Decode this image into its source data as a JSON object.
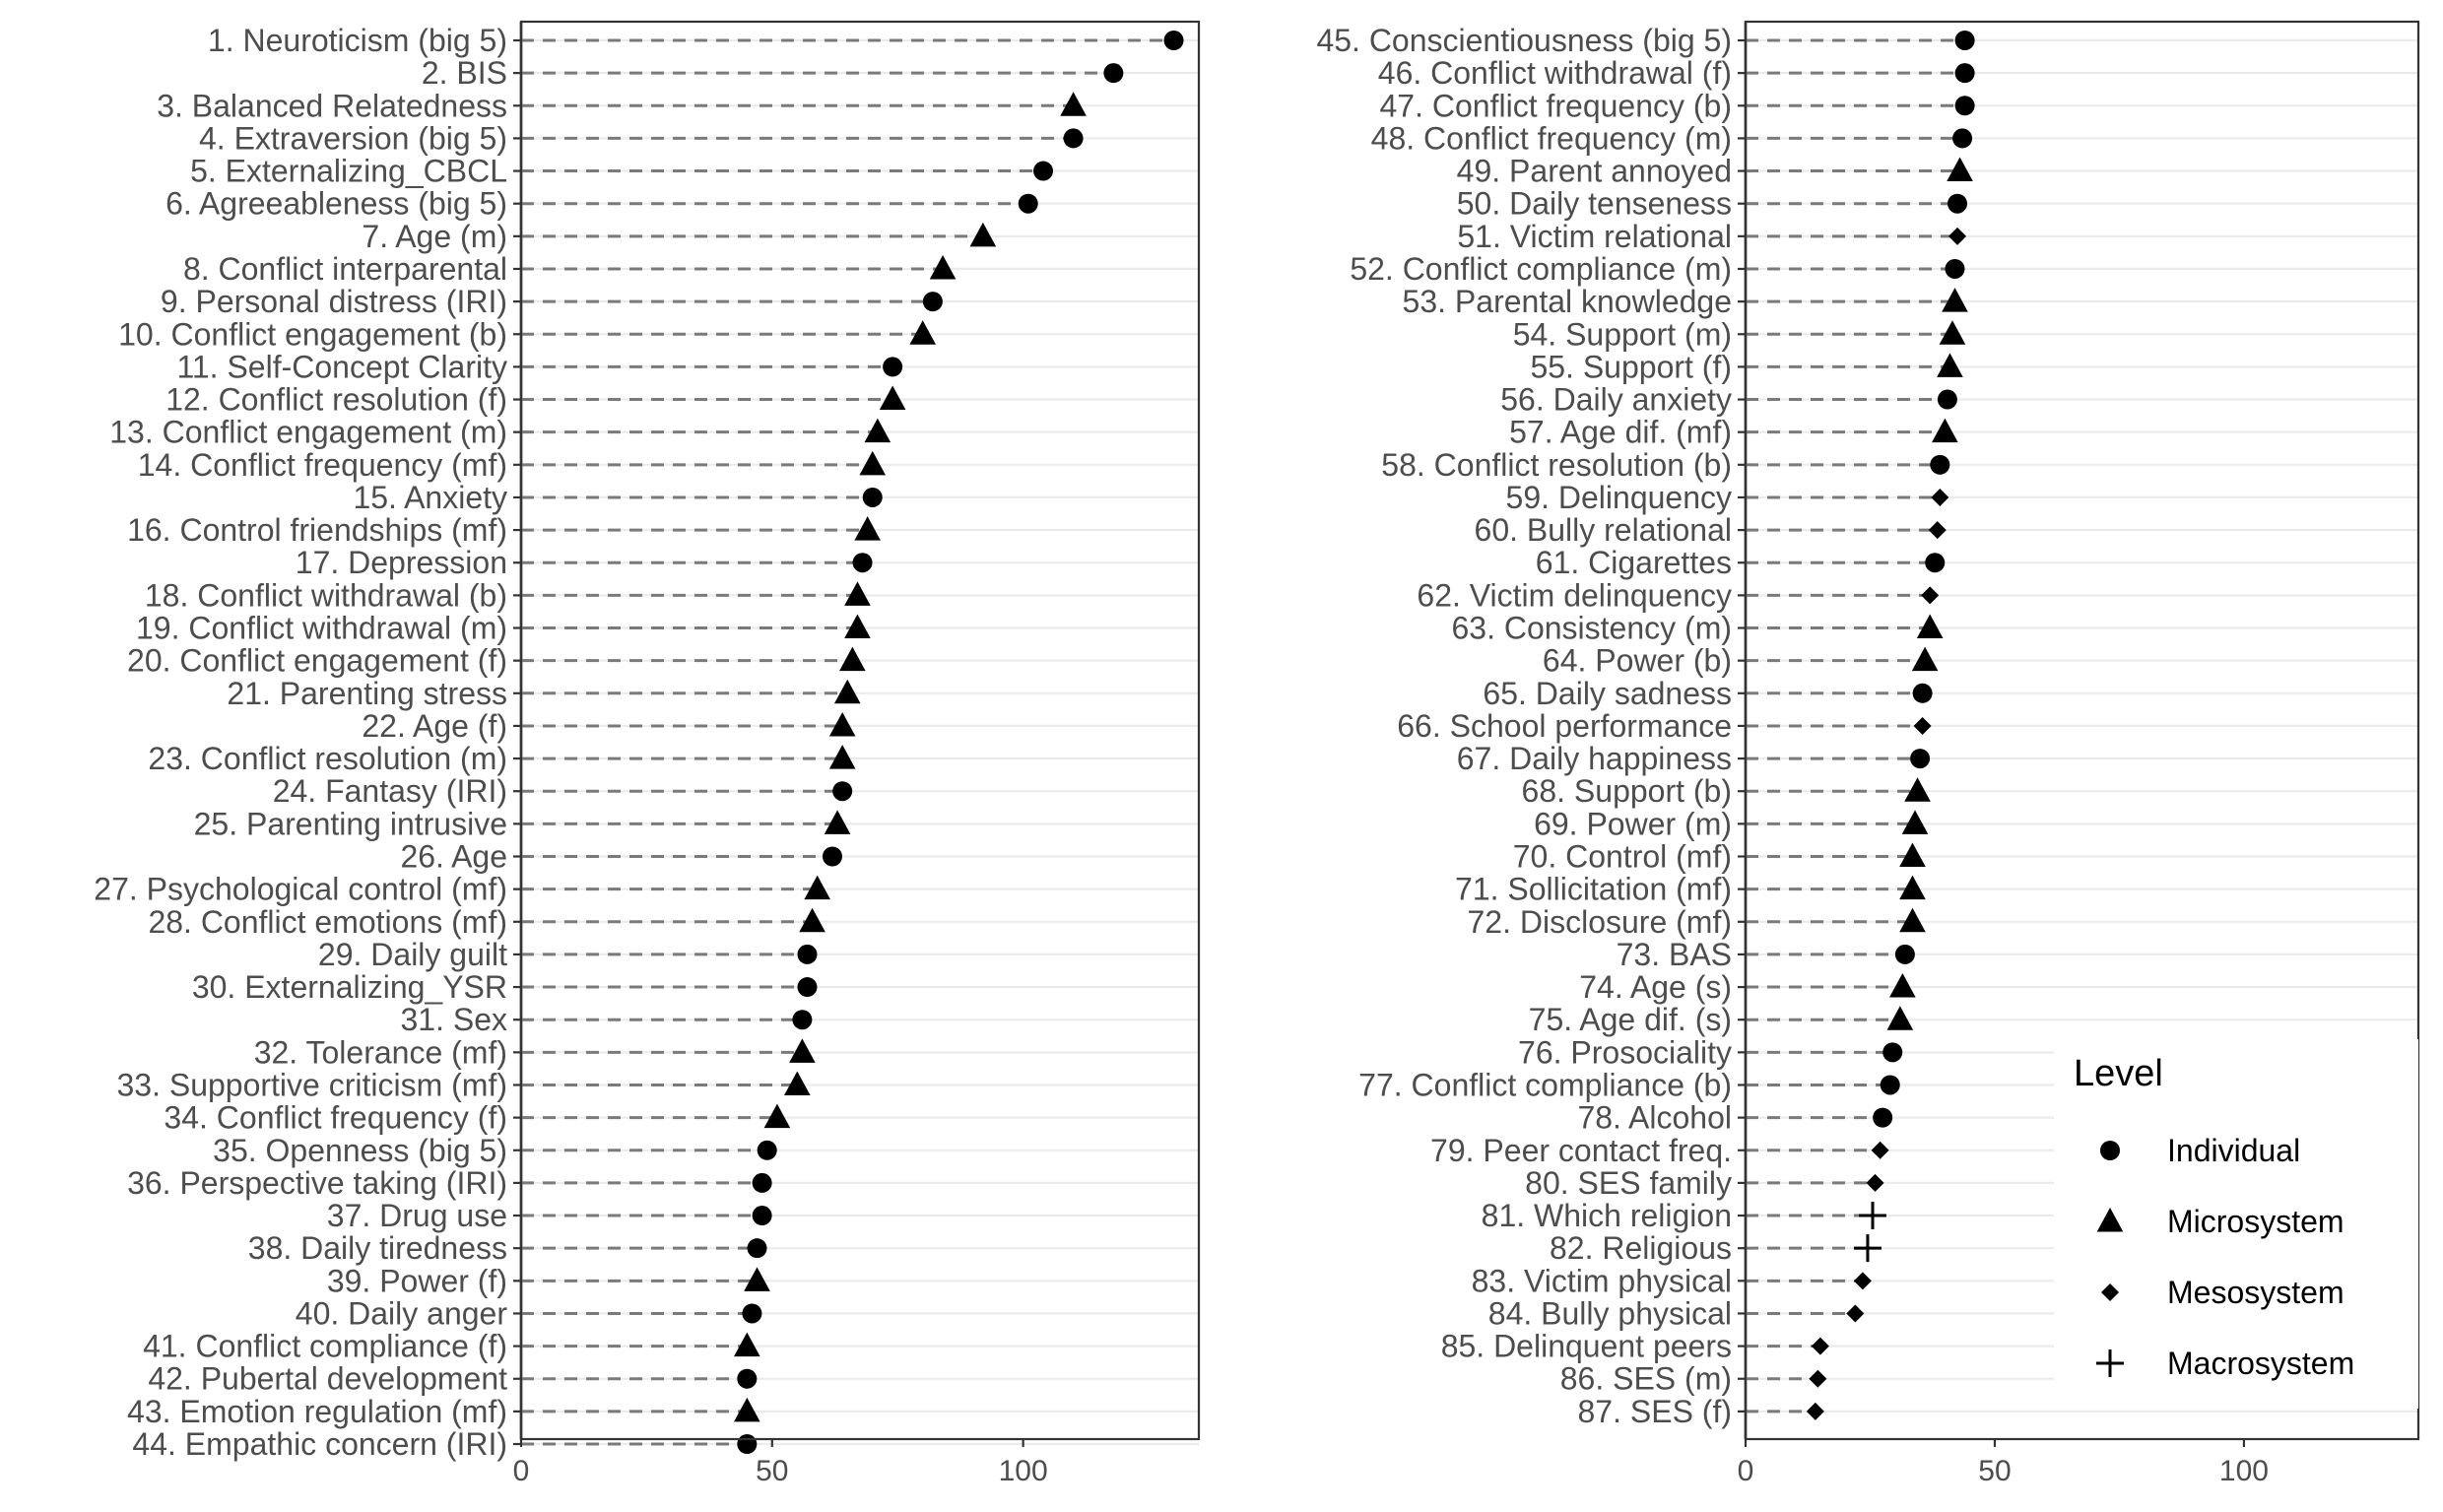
{
  "chart_data": {
    "type": "scatter",
    "style": "dot-plot with dashed leader lines",
    "xlim": [
      0,
      135
    ],
    "x_ticks": [
      "0",
      "50",
      "100"
    ],
    "grid": "horizontal major lines",
    "legend": {
      "title": "Level",
      "placement": "bottom-right",
      "entries": [
        {
          "name": "Individual",
          "shape": "circle"
        },
        {
          "name": "Microsystem",
          "shape": "triangle"
        },
        {
          "name": "Mesosystem",
          "shape": "diamond"
        },
        {
          "name": "Macrosystem",
          "shape": "plus"
        }
      ]
    },
    "panels": [
      {
        "items": [
          {
            "label": "1. Neuroticism (big 5)",
            "value": 130,
            "level": "Individual"
          },
          {
            "label": "2. BIS",
            "value": 118,
            "level": "Individual"
          },
          {
            "label": "3. Balanced Relatedness",
            "value": 110,
            "level": "Microsystem"
          },
          {
            "label": "4. Extraversion (big 5)",
            "value": 110,
            "level": "Individual"
          },
          {
            "label": "5. Externalizing_CBCL",
            "value": 104,
            "level": "Individual"
          },
          {
            "label": "6. Agreeableness (big 5)",
            "value": 101,
            "level": "Individual"
          },
          {
            "label": "7. Age (m)",
            "value": 92,
            "level": "Microsystem"
          },
          {
            "label": "8. Conflict interparental",
            "value": 84,
            "level": "Microsystem"
          },
          {
            "label": "9. Personal distress (IRI)",
            "value": 82,
            "level": "Individual"
          },
          {
            "label": "10. Conflict engagement (b)",
            "value": 80,
            "level": "Microsystem"
          },
          {
            "label": "11. Self-Concept Clarity",
            "value": 74,
            "level": "Individual"
          },
          {
            "label": "12. Conflict resolution (f)",
            "value": 74,
            "level": "Microsystem"
          },
          {
            "label": "13. Conflict engagement (m)",
            "value": 71,
            "level": "Microsystem"
          },
          {
            "label": "14. Conflict frequency (mf)",
            "value": 70,
            "level": "Microsystem"
          },
          {
            "label": "15. Anxiety",
            "value": 70,
            "level": "Individual"
          },
          {
            "label": "16. Control friendships (mf)",
            "value": 69,
            "level": "Microsystem"
          },
          {
            "label": "17. Depression",
            "value": 68,
            "level": "Individual"
          },
          {
            "label": "18. Conflict withdrawal (b)",
            "value": 67,
            "level": "Microsystem"
          },
          {
            "label": "19. Conflict withdrawal (m)",
            "value": 67,
            "level": "Microsystem"
          },
          {
            "label": "20. Conflict engagement (f)",
            "value": 66,
            "level": "Microsystem"
          },
          {
            "label": "21. Parenting stress",
            "value": 65,
            "level": "Microsystem"
          },
          {
            "label": "22. Age (f)",
            "value": 64,
            "level": "Microsystem"
          },
          {
            "label": "23. Conflict resolution (m)",
            "value": 64,
            "level": "Microsystem"
          },
          {
            "label": "24. Fantasy (IRI)",
            "value": 64,
            "level": "Individual"
          },
          {
            "label": "25. Parenting intrusive",
            "value": 63,
            "level": "Microsystem"
          },
          {
            "label": "26. Age",
            "value": 62,
            "level": "Individual"
          },
          {
            "label": "27. Psychological control (mf)",
            "value": 59,
            "level": "Microsystem"
          },
          {
            "label": "28. Conflict emotions (mf)",
            "value": 58,
            "level": "Microsystem"
          },
          {
            "label": "29. Daily guilt",
            "value": 57,
            "level": "Individual"
          },
          {
            "label": "30. Externalizing_YSR",
            "value": 57,
            "level": "Individual"
          },
          {
            "label": "31. Sex",
            "value": 56,
            "level": "Individual"
          },
          {
            "label": "32. Tolerance (mf)",
            "value": 56,
            "level": "Microsystem"
          },
          {
            "label": "33. Supportive criticism (mf)",
            "value": 55,
            "level": "Microsystem"
          },
          {
            "label": "34. Conflict frequency (f)",
            "value": 51,
            "level": "Microsystem"
          },
          {
            "label": "35. Openness (big 5)",
            "value": 49,
            "level": "Individual"
          },
          {
            "label": "36. Perspective taking (IRI)",
            "value": 48,
            "level": "Individual"
          },
          {
            "label": "37. Drug use",
            "value": 48,
            "level": "Individual"
          },
          {
            "label": "38. Daily tiredness",
            "value": 47,
            "level": "Individual"
          },
          {
            "label": "39. Power (f)",
            "value": 47,
            "level": "Microsystem"
          },
          {
            "label": "40. Daily anger",
            "value": 46,
            "level": "Individual"
          },
          {
            "label": "41. Conflict compliance (f)",
            "value": 45,
            "level": "Microsystem"
          },
          {
            "label": "42. Pubertal development",
            "value": 45,
            "level": "Individual"
          },
          {
            "label": "43. Emotion regulation (mf)",
            "value": 45,
            "level": "Microsystem"
          },
          {
            "label": "44. Empathic concern (IRI)",
            "value": 45,
            "level": "Individual"
          }
        ]
      },
      {
        "items": [
          {
            "label": "45. Conscientiousness (big 5)",
            "value": 44,
            "level": "Individual"
          },
          {
            "label": "46. Conflict withdrawal (f)",
            "value": 44,
            "level": "Individual"
          },
          {
            "label": "47. Conflict frequency (b)",
            "value": 44,
            "level": "Individual"
          },
          {
            "label": "48. Conflict frequency (m)",
            "value": 43.5,
            "level": "Individual"
          },
          {
            "label": "49. Parent annoyed",
            "value": 43,
            "level": "Microsystem"
          },
          {
            "label": "50. Daily tenseness",
            "value": 42.5,
            "level": "Individual"
          },
          {
            "label": "51. Victim relational",
            "value": 42.5,
            "level": "Mesosystem"
          },
          {
            "label": "52. Conflict compliance (m)",
            "value": 42,
            "level": "Individual"
          },
          {
            "label": "53. Parental knowledge",
            "value": 42,
            "level": "Microsystem"
          },
          {
            "label": "54. Support (m)",
            "value": 41.5,
            "level": "Microsystem"
          },
          {
            "label": "55. Support (f)",
            "value": 41,
            "level": "Microsystem"
          },
          {
            "label": "56. Daily anxiety",
            "value": 40.5,
            "level": "Individual"
          },
          {
            "label": "57. Age dif. (mf)",
            "value": 40,
            "level": "Microsystem"
          },
          {
            "label": "58. Conflict resolution (b)",
            "value": 39,
            "level": "Individual"
          },
          {
            "label": "59. Delinquency",
            "value": 39,
            "level": "Mesosystem"
          },
          {
            "label": "60. Bully relational",
            "value": 38.5,
            "level": "Mesosystem"
          },
          {
            "label": "61. Cigarettes",
            "value": 38,
            "level": "Individual"
          },
          {
            "label": "62. Victim delinquency",
            "value": 37,
            "level": "Mesosystem"
          },
          {
            "label": "63. Consistency (m)",
            "value": 37,
            "level": "Microsystem"
          },
          {
            "label": "64. Power (b)",
            "value": 36,
            "level": "Microsystem"
          },
          {
            "label": "65. Daily sadness",
            "value": 35.5,
            "level": "Individual"
          },
          {
            "label": "66. School performance",
            "value": 35.5,
            "level": "Mesosystem"
          },
          {
            "label": "67. Daily happiness",
            "value": 35,
            "level": "Individual"
          },
          {
            "label": "68. Support (b)",
            "value": 34.5,
            "level": "Microsystem"
          },
          {
            "label": "69. Power (m)",
            "value": 34,
            "level": "Microsystem"
          },
          {
            "label": "70. Control (mf)",
            "value": 33.5,
            "level": "Microsystem"
          },
          {
            "label": "71. Sollicitation (mf)",
            "value": 33.5,
            "level": "Microsystem"
          },
          {
            "label": "72. Disclosure (mf)",
            "value": 33.5,
            "level": "Microsystem"
          },
          {
            "label": "73. BAS",
            "value": 32,
            "level": "Individual"
          },
          {
            "label": "74. Age (s)",
            "value": 31.5,
            "level": "Microsystem"
          },
          {
            "label": "75. Age dif. (s)",
            "value": 31,
            "level": "Microsystem"
          },
          {
            "label": "76. Prosociality",
            "value": 29.5,
            "level": "Individual"
          },
          {
            "label": "77. Conflict compliance (b)",
            "value": 29,
            "level": "Individual"
          },
          {
            "label": "78. Alcohol",
            "value": 27.5,
            "level": "Individual"
          },
          {
            "label": "79. Peer contact freq.",
            "value": 27,
            "level": "Mesosystem"
          },
          {
            "label": "80. SES family",
            "value": 26,
            "level": "Mesosystem"
          },
          {
            "label": "81. Which religion",
            "value": 25.5,
            "level": "Macrosystem"
          },
          {
            "label": "82. Religious",
            "value": 24.5,
            "level": "Macrosystem"
          },
          {
            "label": "83. Victim physical",
            "value": 23.5,
            "level": "Mesosystem"
          },
          {
            "label": "84. Bully physical",
            "value": 22,
            "level": "Mesosystem"
          },
          {
            "label": "85. Delinquent peers",
            "value": 15,
            "level": "Mesosystem"
          },
          {
            "label": "86. SES (m)",
            "value": 14.5,
            "level": "Mesosystem"
          },
          {
            "label": "87. SES (f)",
            "value": 14,
            "level": "Mesosystem"
          }
        ]
      }
    ]
  }
}
